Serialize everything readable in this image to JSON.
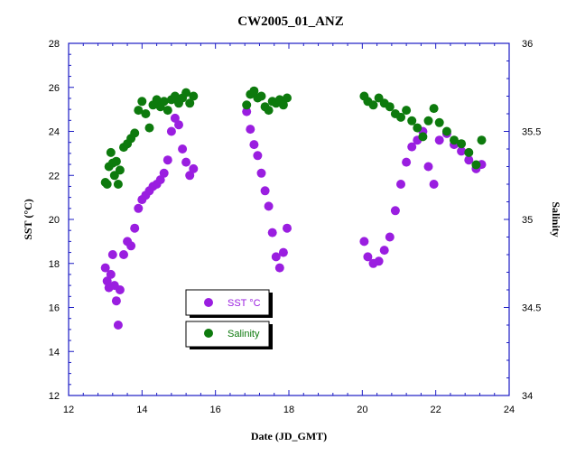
{
  "chart_data": {
    "type": "scatter",
    "title": "CW2005_01_ANZ",
    "xlabel": "Date (JD_GMT)",
    "ylabel": "SST (°C)",
    "y2label": "Salinity",
    "xlim": [
      12,
      24
    ],
    "ylim": [
      12,
      28
    ],
    "y2lim": [
      34,
      36
    ],
    "x_ticks": [
      12,
      14,
      16,
      18,
      20,
      22,
      24
    ],
    "y_ticks": [
      12,
      14,
      16,
      18,
      20,
      22,
      24,
      26,
      28
    ],
    "y2_ticks": [
      34,
      34.5,
      35,
      35.5,
      36
    ],
    "legend_placement": "lower-center-left",
    "series": [
      {
        "name": "SST °C",
        "axis": "left",
        "color": "#9a1ee0",
        "x": [
          13.0,
          13.05,
          13.1,
          13.15,
          13.2,
          13.25,
          13.3,
          13.35,
          13.4,
          13.5,
          13.6,
          13.7,
          13.8,
          13.9,
          14.0,
          14.1,
          14.2,
          14.3,
          14.4,
          14.5,
          14.6,
          14.7,
          14.8,
          14.9,
          15.0,
          15.1,
          15.2,
          15.3,
          15.4,
          16.85,
          16.95,
          17.05,
          17.15,
          17.25,
          17.35,
          17.45,
          17.55,
          17.65,
          17.75,
          17.85,
          17.95,
          20.05,
          20.15,
          20.3,
          20.45,
          20.6,
          20.75,
          20.9,
          21.05,
          21.2,
          21.35,
          21.5,
          21.65,
          21.8,
          21.95,
          22.1,
          22.3,
          22.5,
          22.7,
          22.9,
          23.1,
          23.25
        ],
        "y": [
          17.8,
          17.2,
          16.9,
          17.5,
          18.4,
          17.0,
          16.3,
          15.2,
          16.8,
          18.4,
          19.0,
          18.8,
          19.6,
          20.5,
          20.9,
          21.1,
          21.3,
          21.5,
          21.6,
          21.8,
          22.1,
          22.7,
          24.0,
          24.6,
          24.3,
          23.2,
          22.6,
          22.0,
          22.3,
          24.9,
          24.1,
          23.4,
          22.9,
          22.1,
          21.3,
          20.6,
          19.4,
          18.3,
          17.8,
          18.5,
          19.6,
          19.0,
          18.3,
          18.0,
          18.1,
          18.6,
          19.2,
          20.4,
          21.6,
          22.6,
          23.3,
          23.6,
          24.0,
          22.4,
          21.6,
          23.6,
          23.9,
          23.4,
          23.1,
          22.7,
          22.3,
          22.5
        ]
      },
      {
        "name": "Salinity",
        "axis": "right",
        "color": "#0d7a0d",
        "x": [
          13.0,
          13.05,
          13.1,
          13.15,
          13.2,
          13.25,
          13.3,
          13.35,
          13.4,
          13.5,
          13.6,
          13.7,
          13.8,
          13.9,
          14.0,
          14.1,
          14.2,
          14.3,
          14.4,
          14.5,
          14.6,
          14.7,
          14.8,
          14.9,
          15.0,
          15.1,
          15.2,
          15.3,
          15.4,
          16.85,
          16.95,
          17.05,
          17.15,
          17.25,
          17.35,
          17.45,
          17.55,
          17.65,
          17.75,
          17.85,
          17.95,
          20.05,
          20.15,
          20.3,
          20.45,
          20.6,
          20.75,
          20.9,
          21.05,
          21.2,
          21.35,
          21.5,
          21.65,
          21.8,
          21.95,
          22.1,
          22.3,
          22.5,
          22.7,
          22.9,
          23.1,
          23.25
        ],
        "y": [
          35.21,
          35.2,
          35.3,
          35.38,
          35.32,
          35.25,
          35.33,
          35.2,
          35.28,
          35.41,
          35.43,
          35.46,
          35.49,
          35.62,
          35.67,
          35.6,
          35.52,
          35.65,
          35.68,
          35.64,
          35.67,
          35.62,
          35.68,
          35.7,
          35.66,
          35.69,
          35.72,
          35.66,
          35.7,
          35.65,
          35.71,
          35.73,
          35.69,
          35.7,
          35.64,
          35.62,
          35.67,
          35.66,
          35.68,
          35.65,
          35.69,
          35.7,
          35.67,
          35.65,
          35.69,
          35.66,
          35.64,
          35.6,
          35.58,
          35.62,
          35.56,
          35.52,
          35.47,
          35.56,
          35.63,
          35.55,
          35.5,
          35.45,
          35.43,
          35.38,
          35.31,
          35.45
        ]
      }
    ]
  }
}
